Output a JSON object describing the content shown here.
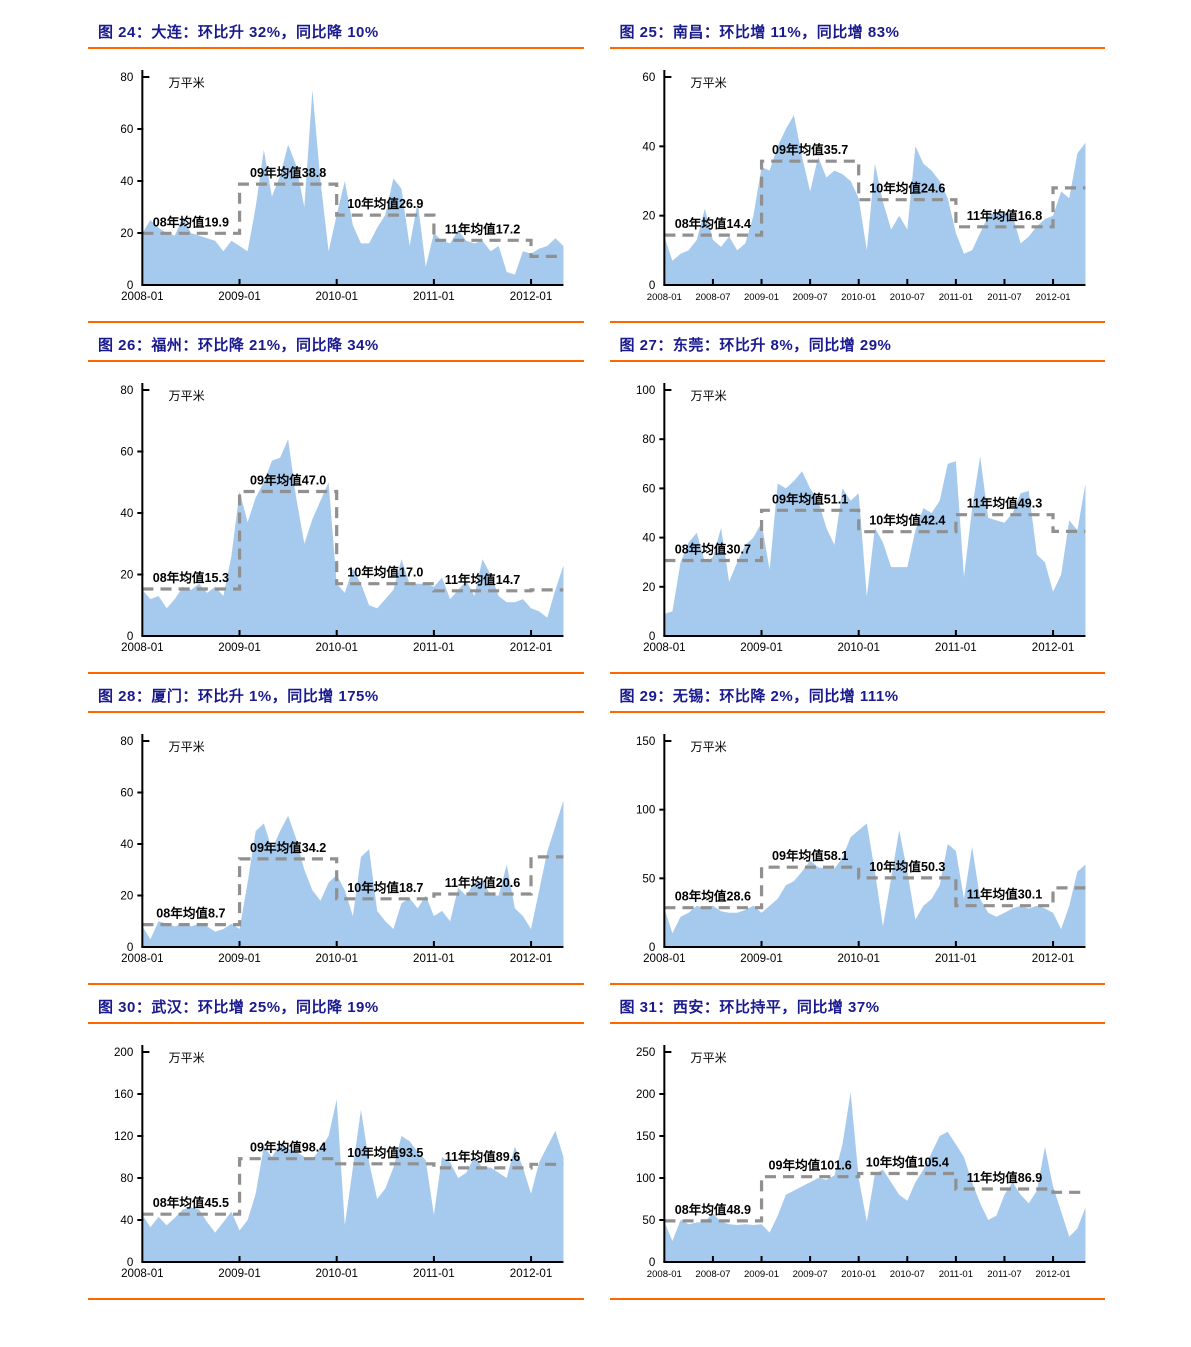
{
  "page": {
    "background": "#ffffff"
  },
  "colors": {
    "title_navy": "#1a1a8f",
    "rule_orange": "#ff6600",
    "area_fill": "#a6caee",
    "avg_line_gray": "#909090",
    "axis_black": "#000000"
  },
  "chart_data": [
    {
      "type": "area",
      "title": "图 24：大连：环比升 32%，同比降 10%",
      "unit": "万平米",
      "ylim": [
        0,
        80
      ],
      "y_ticks": [
        0,
        20,
        40,
        60,
        80
      ],
      "x_range": [
        "2008-01",
        "2012-05"
      ],
      "x_tick_labels": [
        "2008-01",
        "2009-01",
        "2010-01",
        "2011-01",
        "2012-01"
      ],
      "grid": false,
      "legend": "none",
      "monthly_values": [
        20,
        25,
        22,
        20,
        19,
        26,
        20,
        19,
        18,
        17,
        13,
        17,
        15,
        13,
        30,
        52,
        34,
        42,
        54,
        46,
        30,
        75,
        40,
        13,
        27,
        40,
        23,
        16,
        16,
        22,
        27,
        41,
        37,
        15,
        32,
        7,
        20,
        17,
        16,
        21,
        17,
        16,
        17,
        13,
        15,
        5,
        4,
        13,
        12,
        14,
        15,
        18,
        15
      ],
      "avg_line": {
        "values_by_year": [
          19.9,
          38.8,
          26.9,
          17.2
        ],
        "labels": [
          "08年均值19.9",
          "09年均值38.8",
          "10年均值26.9",
          "11年均值17.2"
        ],
        "tail_2012_value": 11
      }
    },
    {
      "type": "area",
      "title": "图 25：南昌：环比增 11%，同比增 83%",
      "unit": "万平米",
      "ylim": [
        0,
        60
      ],
      "y_ticks": [
        0,
        20,
        40,
        60
      ],
      "x_range": [
        "2008-01",
        "2012-05"
      ],
      "x_tick_labels": [
        "2008-01",
        "2008-07",
        "2009-01",
        "2009-07",
        "2010-01",
        "2010-07",
        "2011-01",
        "2011-07",
        "2012-01"
      ],
      "grid": false,
      "legend": "none",
      "monthly_values": [
        14,
        7,
        9,
        10,
        13,
        22,
        13,
        11,
        14,
        10,
        12,
        20,
        34,
        33,
        40,
        45,
        49,
        37,
        27,
        37,
        31,
        33,
        32,
        30,
        25,
        10,
        35,
        24,
        16,
        20,
        16,
        40,
        35,
        33,
        30,
        25,
        15,
        9,
        10,
        15,
        20,
        21,
        21,
        20,
        12,
        14,
        17,
        19,
        20,
        27,
        25,
        38,
        41
      ],
      "avg_line": {
        "values_by_year": [
          14.4,
          35.7,
          24.6,
          16.8
        ],
        "labels": [
          "08年均值14.4",
          "09年均值35.7",
          "10年均值24.6",
          "11年均值16.8"
        ],
        "tail_2012_value": 28
      }
    },
    {
      "type": "area",
      "title": "图 26：福州：环比降 21%，同比降 34%",
      "unit": "万平米",
      "ylim": [
        0,
        80
      ],
      "y_ticks": [
        0,
        20,
        40,
        60,
        80
      ],
      "x_range": [
        "2008-01",
        "2012-05"
      ],
      "x_tick_labels": [
        "2008-01",
        "2009-01",
        "2010-01",
        "2011-01",
        "2012-01"
      ],
      "grid": false,
      "legend": "none",
      "monthly_values": [
        15,
        12,
        13,
        9,
        12,
        16,
        15,
        17,
        14,
        16,
        13,
        26,
        47,
        37,
        45,
        50,
        57,
        58,
        64,
        45,
        30,
        38,
        44,
        50,
        17,
        14,
        22,
        17,
        10,
        9,
        12,
        15,
        25,
        17,
        17,
        17,
        16,
        19,
        12,
        15,
        18,
        13,
        25,
        20,
        13,
        11,
        11,
        12,
        9,
        8,
        6,
        15,
        23
      ],
      "avg_line": {
        "values_by_year": [
          15.3,
          47.0,
          17.0,
          14.7
        ],
        "labels": [
          "08年均值15.3",
          "09年均值47.0",
          "10年均值17.0",
          "11年均值14.7"
        ],
        "tail_2012_value": 15
      }
    },
    {
      "type": "area",
      "title": "图 27：东莞：环比升 8%，同比增 29%",
      "unit": "万平米",
      "ylim": [
        0,
        100
      ],
      "y_ticks": [
        0,
        20,
        40,
        60,
        80,
        100
      ],
      "x_range": [
        "2008-01",
        "2012-05"
      ],
      "x_tick_labels": [
        "2008-01",
        "2009-01",
        "2010-01",
        "2011-01",
        "2012-01"
      ],
      "grid": false,
      "legend": "none",
      "monthly_values": [
        9,
        10,
        30,
        38,
        42,
        30,
        32,
        44,
        22,
        30,
        37,
        40,
        46,
        27,
        62,
        60,
        63,
        67,
        60,
        55,
        44,
        37,
        60,
        55,
        58,
        16,
        44,
        38,
        28,
        28,
        28,
        43,
        52,
        50,
        55,
        70,
        71,
        24,
        52,
        73,
        48,
        47,
        46,
        50,
        58,
        59,
        33,
        30,
        18,
        25,
        47,
        43,
        62
      ],
      "avg_line": {
        "values_by_year": [
          30.7,
          51.1,
          42.4,
          49.3
        ],
        "labels": [
          "08年均值30.7",
          "09年均值51.1",
          "10年均值42.4",
          "11年均值49.3"
        ],
        "tail_2012_value": 42.5
      }
    },
    {
      "type": "area",
      "title": "图 28：厦门：环比升 1%，同比增 175%",
      "unit": "万平米",
      "ylim": [
        0,
        80
      ],
      "y_ticks": [
        0,
        20,
        40,
        60,
        80
      ],
      "x_range": [
        "2008-01",
        "2012-05"
      ],
      "x_tick_labels": [
        "2008-01",
        "2009-01",
        "2010-01",
        "2011-01",
        "2012-01"
      ],
      "grid": false,
      "legend": "none",
      "monthly_values": [
        8,
        3,
        10,
        9,
        8,
        9,
        8,
        9,
        8,
        6,
        7,
        9,
        7,
        25,
        45,
        48,
        38,
        45,
        51,
        42,
        30,
        22,
        18,
        25,
        28,
        22,
        12,
        35,
        38,
        14,
        10,
        7,
        17,
        19,
        15,
        20,
        12,
        14,
        10,
        23,
        20,
        25,
        26,
        20,
        20,
        32,
        15,
        12,
        7,
        22,
        37,
        47,
        57
      ],
      "avg_line": {
        "values_by_year": [
          8.7,
          34.2,
          18.7,
          20.6
        ],
        "labels": [
          "08年均值8.7",
          "09年均值34.2",
          "10年均值18.7",
          "11年均值20.6"
        ],
        "tail_2012_value": 35
      }
    },
    {
      "type": "area",
      "title": "图 29：无锡：环比降 2%，同比增 111%",
      "unit": "万平米",
      "ylim": [
        0,
        150
      ],
      "y_ticks": [
        0,
        50,
        100,
        150
      ],
      "x_range": [
        "2008-01",
        "2012-05"
      ],
      "x_tick_labels": [
        "2008-01",
        "2009-01",
        "2010-01",
        "2011-01",
        "2012-01"
      ],
      "grid": false,
      "legend": "none",
      "monthly_values": [
        28,
        10,
        22,
        25,
        30,
        28,
        30,
        26,
        25,
        25,
        27,
        30,
        25,
        30,
        35,
        45,
        48,
        55,
        63,
        58,
        57,
        57,
        65,
        80,
        85,
        90,
        55,
        15,
        50,
        85,
        55,
        20,
        30,
        35,
        45,
        75,
        70,
        35,
        73,
        35,
        25,
        22,
        25,
        28,
        30,
        28,
        30,
        28,
        25,
        13,
        30,
        55,
        60
      ],
      "avg_line": {
        "values_by_year": [
          28.6,
          58.1,
          50.3,
          30.1
        ],
        "labels": [
          "08年均值28.6",
          "09年均值58.1",
          "10年均值50.3",
          "11年均值30.1"
        ],
        "tail_2012_value": 43
      }
    },
    {
      "type": "area",
      "title": "图 30：武汉：环比增 25%，同比降 19%",
      "unit": "万平米",
      "ylim": [
        0,
        200
      ],
      "y_ticks": [
        0,
        40,
        80,
        120,
        160,
        200
      ],
      "x_range": [
        "2008-01",
        "2012-05"
      ],
      "x_tick_labels": [
        "2008-01",
        "2009-01",
        "2010-01",
        "2011-01",
        "2012-01"
      ],
      "grid": false,
      "legend": "none",
      "monthly_values": [
        45,
        33,
        43,
        35,
        42,
        50,
        52,
        50,
        38,
        28,
        38,
        48,
        30,
        40,
        65,
        110,
        100,
        112,
        108,
        105,
        100,
        98,
        108,
        120,
        155,
        35,
        90,
        145,
        95,
        60,
        70,
        90,
        120,
        115,
        105,
        97,
        45,
        100,
        95,
        80,
        85,
        100,
        90,
        90,
        85,
        80,
        110,
        90,
        65,
        95,
        110,
        125,
        100
      ],
      "avg_line": {
        "values_by_year": [
          45.5,
          98.4,
          93.5,
          89.6
        ],
        "labels": [
          "08年均值45.5",
          "09年均值98.4",
          "10年均值93.5",
          "11年均值89.6"
        ],
        "tail_2012_value": 93
      }
    },
    {
      "type": "area",
      "title": "图 31：西安：环比持平，同比增 37%",
      "unit": "万平米",
      "ylim": [
        0,
        250
      ],
      "y_ticks": [
        0,
        50,
        100,
        150,
        200,
        250
      ],
      "x_range": [
        "2008-01",
        "2012-05"
      ],
      "x_tick_labels": [
        "2008-01",
        "2008-07",
        "2009-01",
        "2009-07",
        "2010-01",
        "2010-07",
        "2011-01",
        "2011-07",
        "2012-01"
      ],
      "grid": false,
      "legend": "none",
      "monthly_values": [
        48,
        25,
        50,
        45,
        47,
        48,
        58,
        48,
        45,
        44,
        45,
        44,
        45,
        35,
        55,
        80,
        85,
        90,
        95,
        100,
        98,
        103,
        140,
        202,
        100,
        48,
        105,
        110,
        95,
        80,
        73,
        95,
        110,
        130,
        150,
        155,
        140,
        125,
        95,
        70,
        50,
        55,
        80,
        95,
        80,
        70,
        85,
        137,
        90,
        60,
        30,
        40,
        65
      ],
      "avg_line": {
        "values_by_year": [
          48.9,
          101.6,
          105.4,
          86.9
        ],
        "labels": [
          "08年均值48.9",
          "09年均值101.6",
          "10年均值105.4",
          "11年均值86.9"
        ],
        "tail_2012_value": 83
      }
    }
  ]
}
